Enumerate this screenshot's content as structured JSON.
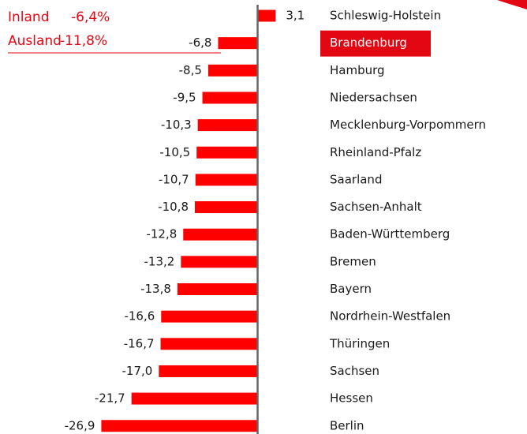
{
  "chart_data": {
    "type": "bar",
    "orientation": "horizontal",
    "categories": [
      "Schleswig-Holstein",
      "Brandenburg",
      "Hamburg",
      "Niedersachsen",
      "Mecklenburg-Vorpommern",
      "Rheinland-Pfalz",
      "Saarland",
      "Sachsen-Anhalt",
      "Baden-Württemberg",
      "Bremen",
      "Bayern",
      "Nordrhein-Westfalen",
      "Thüringen",
      "Sachsen",
      "Hessen",
      "Berlin"
    ],
    "values": [
      3.1,
      -6.8,
      -8.5,
      -9.5,
      -10.3,
      -10.5,
      -10.7,
      -10.8,
      -12.8,
      -13.2,
      -13.8,
      -16.6,
      -16.7,
      -17.0,
      -21.7,
      -26.9
    ],
    "value_labels": [
      "3,1",
      "-6,8",
      "-8,5",
      "-9,5",
      "-10,3",
      "-10,5",
      "-10,7",
      "-10,8",
      "-12,8",
      "-13,2",
      "-13,8",
      "-16,6",
      "-16,7",
      "-17,0",
      "-21,7",
      "-26,9"
    ],
    "color": "#ff0000",
    "highlight": "Brandenburg",
    "highlight_color": "#e30613",
    "xlim": [
      -27.5,
      4
    ],
    "annotations": [
      {
        "label": "Inland",
        "value": "-6,4%"
      },
      {
        "label": "Ausland",
        "value": "-11,8%"
      }
    ]
  }
}
